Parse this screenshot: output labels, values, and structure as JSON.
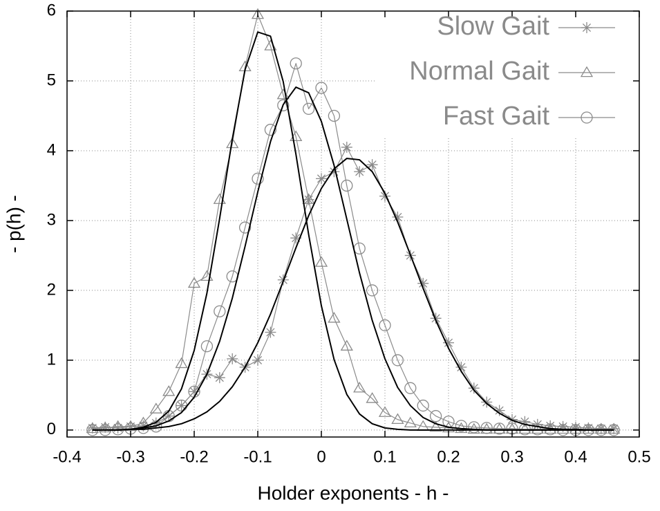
{
  "chart_data": {
    "type": "line",
    "xlabel": "Holder exponents - h -",
    "ylabel": "- p(h) -",
    "xlim": [
      -0.4,
      0.5
    ],
    "ylim": [
      -0.1,
      6
    ],
    "xticks": [
      -0.4,
      -0.3,
      -0.2,
      -0.1,
      0,
      0.1,
      0.2,
      0.3,
      0.4,
      0.5
    ],
    "yticks": [
      0,
      1,
      2,
      3,
      4,
      5,
      6
    ],
    "grid": true,
    "legend": "top right",
    "x": [
      -0.36,
      -0.34,
      -0.32,
      -0.3,
      -0.28,
      -0.26,
      -0.24,
      -0.22,
      -0.2,
      -0.18,
      -0.16,
      -0.14,
      -0.12,
      -0.1,
      -0.08,
      -0.06,
      -0.04,
      -0.02,
      0,
      0.02,
      0.04,
      0.06,
      0.08,
      0.1,
      0.12,
      0.14,
      0.16,
      0.18,
      0.2,
      0.22,
      0.24,
      0.26,
      0.28,
      0.3,
      0.32,
      0.34,
      0.36,
      0.38,
      0.4,
      0.42,
      0.44,
      0.46
    ],
    "series": [
      {
        "name": "Slow Gait",
        "color": "#8a8a8a",
        "marker": "asterisk",
        "values": [
          0.03,
          0.04,
          0.03,
          0.05,
          0.06,
          0.1,
          0.2,
          0.35,
          0.55,
          0.8,
          0.75,
          1.02,
          0.9,
          1.0,
          1.4,
          2.15,
          2.75,
          3.3,
          3.6,
          3.7,
          4.05,
          3.7,
          3.8,
          3.35,
          3.05,
          2.5,
          2.1,
          1.6,
          1.25,
          0.9,
          0.6,
          0.4,
          0.28,
          0.15,
          0.12,
          0.08,
          0.06,
          0.05,
          0.04,
          0.03,
          0.02,
          0.02
        ]
      },
      {
        "name": "Normal Gait",
        "color": "#8a8a8a",
        "marker": "triangle",
        "values": [
          0.02,
          0.03,
          0.05,
          0.05,
          0.1,
          0.3,
          0.55,
          0.95,
          2.1,
          2.2,
          3.3,
          4.1,
          5.2,
          5.95,
          5.5,
          4.8,
          4.2,
          3.3,
          2.4,
          1.6,
          1.2,
          0.6,
          0.45,
          0.25,
          0.15,
          0.1,
          0.05,
          0.04,
          0.03,
          0.02,
          0.01,
          0.01,
          0.01,
          0.01,
          0.01,
          0.01,
          0.01,
          0.01,
          0.01,
          0.01,
          0.01,
          0.01
        ]
      },
      {
        "name": "Fast Gait",
        "color": "#8a8a8a",
        "marker": "circle",
        "values": [
          0,
          0,
          0.01,
          0.02,
          0.03,
          0.05,
          0.2,
          0.35,
          0.55,
          1.2,
          1.7,
          2.2,
          2.9,
          3.6,
          4.3,
          4.65,
          5.25,
          4.6,
          4.9,
          4.5,
          3.5,
          2.6,
          2.0,
          1.5,
          1.0,
          0.6,
          0.35,
          0.2,
          0.12,
          0.06,
          0.04,
          0.03,
          0.02,
          0.02,
          0.01,
          0.01,
          0.01,
          0,
          0,
          0,
          0,
          0
        ]
      },
      {
        "color": "#000000",
        "values": [
          0,
          0,
          0,
          0.01,
          0.01,
          0.03,
          0.05,
          0.09,
          0.16,
          0.26,
          0.41,
          0.62,
          0.9,
          1.25,
          1.66,
          2.13,
          2.61,
          3.07,
          3.46,
          3.74,
          3.89,
          3.87,
          3.7,
          3.39,
          2.98,
          2.51,
          2.03,
          1.57,
          1.17,
          0.84,
          0.57,
          0.38,
          0.24,
          0.14,
          0.08,
          0.05,
          0.02,
          0.01,
          0.01,
          0,
          0,
          0
        ]
      },
      {
        "color": "#000000",
        "values": [
          0,
          0,
          0,
          0.01,
          0.04,
          0.11,
          0.27,
          0.59,
          1.14,
          1.96,
          3.03,
          4.17,
          5.16,
          5.7,
          5.64,
          4.99,
          3.95,
          2.8,
          1.78,
          1.01,
          0.51,
          0.23,
          0.09,
          0.03,
          0.01,
          0,
          0,
          0,
          0,
          0,
          0,
          0,
          0,
          0,
          0,
          0,
          0,
          0,
          0,
          0,
          0,
          0
        ]
      },
      {
        "color": "#000000",
        "values": [
          0,
          0,
          0,
          0.01,
          0.03,
          0.06,
          0.13,
          0.25,
          0.47,
          0.8,
          1.27,
          1.89,
          2.63,
          3.41,
          4.13,
          4.66,
          4.91,
          4.83,
          4.42,
          3.79,
          3.02,
          2.25,
          1.57,
          1.02,
          0.61,
          0.35,
          0.18,
          0.09,
          0.04,
          0.02,
          0.01,
          0,
          0,
          0,
          0,
          0,
          0,
          0,
          0,
          0,
          0,
          0
        ]
      }
    ]
  }
}
